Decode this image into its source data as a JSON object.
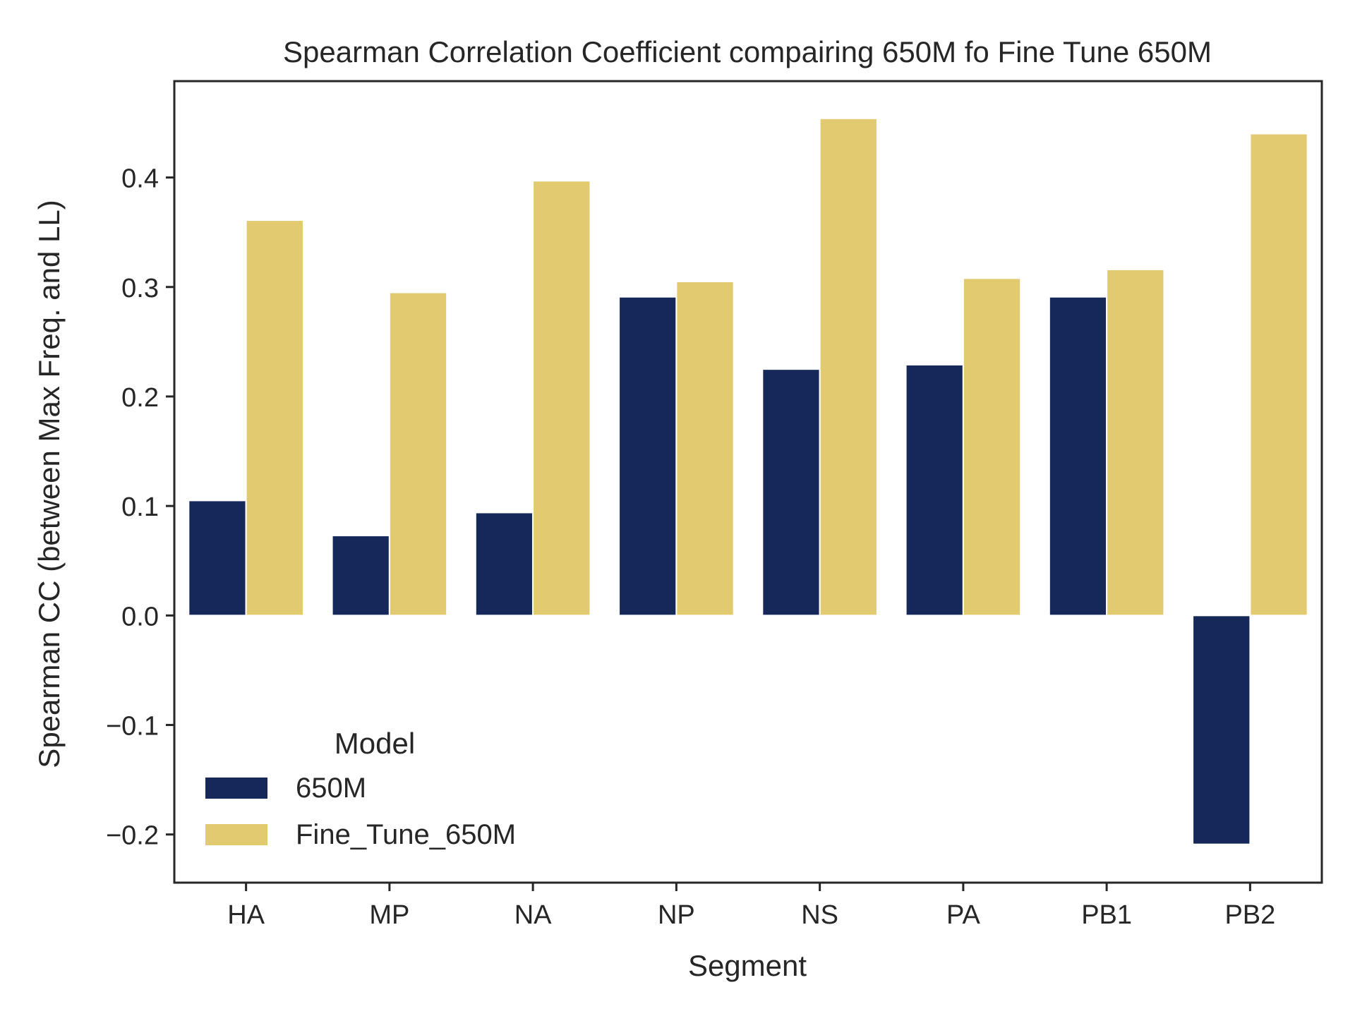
{
  "chart_data": {
    "type": "bar",
    "title": "Spearman Correlation Coefficient compairing 650M fo Fine Tune 650M",
    "xlabel": "Segment",
    "ylabel": "Spearman CC (between Max Freq. and LL)",
    "categories": [
      "HA",
      "MP",
      "NA",
      "NP",
      "NS",
      "PA",
      "PB1",
      "PB2"
    ],
    "series": [
      {
        "name": "650M",
        "color": "#16285a",
        "values": [
          0.105,
          0.073,
          0.094,
          0.291,
          0.225,
          0.229,
          0.291,
          -0.209
        ]
      },
      {
        "name": "Fine_Tune_650M",
        "color": "#e2ca70",
        "values": [
          0.361,
          0.295,
          0.397,
          0.305,
          0.454,
          0.308,
          0.316,
          0.44
        ]
      }
    ],
    "ylim": [
      -0.244,
      0.488
    ],
    "yticks": [
      -0.2,
      -0.1,
      0.0,
      0.1,
      0.2,
      0.3,
      0.4
    ],
    "ytick_labels": [
      "−0.2",
      "−0.1",
      "0.0",
      "0.1",
      "0.2",
      "0.3",
      "0.4"
    ],
    "legend": {
      "title": "Model",
      "placement": "lower-left"
    },
    "grid": false
  }
}
